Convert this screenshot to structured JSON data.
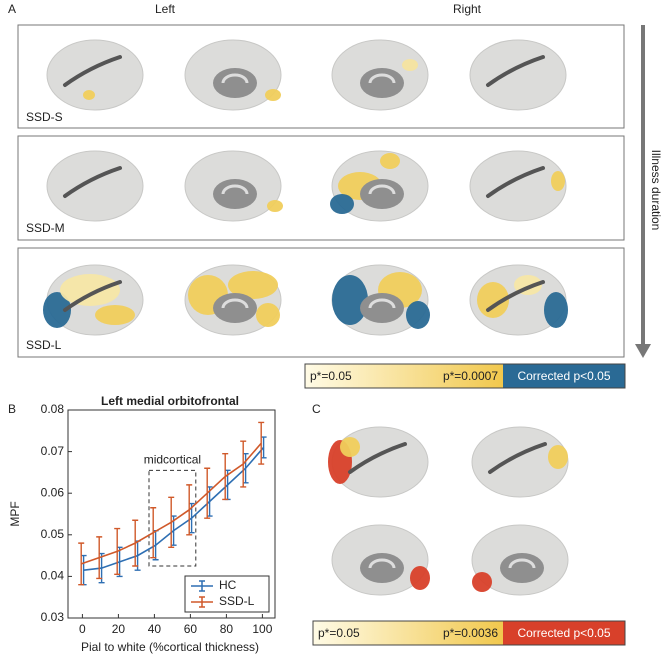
{
  "panel_a": {
    "label": "A",
    "columns": [
      "Left",
      "Right"
    ],
    "rows": [
      "SSD-S",
      "SSD-M",
      "SSD-L"
    ],
    "arrow_label": "Illness duration",
    "colorbar": [
      "p*=0.05",
      "p*=0.0007",
      "Corrected p<0.05"
    ]
  },
  "panel_b": {
    "label": "B"
  },
  "panel_c": {
    "label": "C",
    "colorbar": [
      "p*=0.05",
      "p*=0.0036",
      "Corrected p<0.05"
    ]
  },
  "chart_data": {
    "type": "line",
    "title": "Left medial orbitofrontal",
    "x_label": "Pial to white (%cortical thickness)",
    "y_label": "MPF",
    "x": [
      0,
      10,
      20,
      30,
      40,
      50,
      60,
      70,
      80,
      90,
      100
    ],
    "series": [
      {
        "name": "HC",
        "color": "#2e6fb3",
        "values": [
          0.0415,
          0.042,
          0.0435,
          0.045,
          0.0475,
          0.051,
          0.054,
          0.058,
          0.062,
          0.066,
          0.071
        ],
        "errors": [
          0.0035,
          0.0035,
          0.0035,
          0.0035,
          0.0035,
          0.0035,
          0.0035,
          0.0035,
          0.0035,
          0.0035,
          0.0025
        ]
      },
      {
        "name": "SSD-L",
        "color": "#d0592a",
        "values": [
          0.043,
          0.0445,
          0.046,
          0.048,
          0.0505,
          0.053,
          0.056,
          0.06,
          0.064,
          0.067,
          0.072
        ],
        "errors": [
          0.005,
          0.005,
          0.0055,
          0.0055,
          0.006,
          0.006,
          0.006,
          0.006,
          0.0055,
          0.0055,
          0.005
        ]
      }
    ],
    "xlim": [
      -8,
      107
    ],
    "ylim": [
      0.03,
      0.08
    ],
    "xticks": [
      0,
      20,
      40,
      60,
      80,
      100
    ],
    "yticks": [
      0.03,
      0.04,
      0.05,
      0.06,
      0.07,
      0.08
    ],
    "annotation": {
      "text": "midcortical",
      "xlim": [
        37,
        63
      ],
      "ylim": [
        0.0425,
        0.0655
      ]
    },
    "legend": "lower right"
  }
}
